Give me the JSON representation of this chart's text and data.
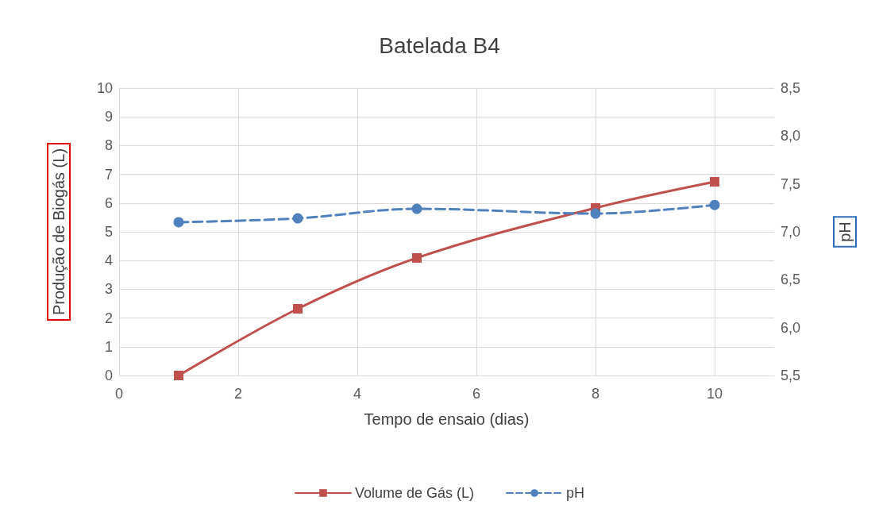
{
  "chart_data": {
    "type": "line",
    "title": "Batelada B4",
    "xlabel": "Tempo de ensaio (dias)",
    "ylabel": "Produção de Biogás (L)",
    "y2label": "pH",
    "x": [
      1,
      3,
      5,
      8,
      10
    ],
    "series": [
      {
        "name": "Volume de Gás (L)",
        "color": "#c0504d",
        "values": [
          0,
          2.32,
          4.09,
          5.83,
          6.74
        ],
        "marker": "square",
        "line_style": "solid"
      },
      {
        "name": "pH",
        "color": "#4f81bd",
        "values": [
          7.1,
          7.14,
          7.24,
          7.19,
          7.28
        ],
        "axis": "y2",
        "marker": "circle",
        "line_style": "dashed"
      }
    ],
    "xlim": [
      0,
      11
    ],
    "xticks": [
      0,
      2,
      4,
      6,
      8,
      10
    ],
    "ylim": [
      0,
      10
    ],
    "yticks": [
      0,
      1,
      2,
      3,
      4,
      5,
      6,
      7,
      8,
      9,
      10
    ],
    "y2lim": [
      5.5,
      8.5
    ],
    "y2ticks": [
      {
        "value": 5.5,
        "label": "5,5"
      },
      {
        "value": 6,
        "label": "6,0"
      },
      {
        "value": 6.5,
        "label": "6,5"
      },
      {
        "value": 7,
        "label": "7,0"
      },
      {
        "value": 7.5,
        "label": "7,5"
      },
      {
        "value": 8,
        "label": "8,0"
      },
      {
        "value": 8.5,
        "label": "8,5"
      }
    ],
    "grid": true,
    "legend": "bottom"
  }
}
